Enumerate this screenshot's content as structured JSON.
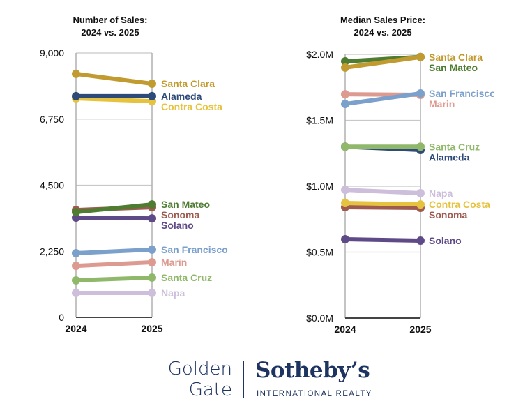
{
  "chart_data": [
    {
      "type": "line",
      "title": [
        "Number of Sales:",
        "2024 vs. 2025"
      ],
      "categories": [
        "2024",
        "2025"
      ],
      "ylim": [
        0,
        9000
      ],
      "yticks": [
        0,
        2250,
        4500,
        6750,
        9000
      ],
      "ytick_labels": [
        "0",
        "2,250",
        "4,500",
        "6,750",
        "9,000"
      ],
      "grid": true,
      "series": [
        {
          "name": "Santa Clara",
          "values": [
            8290,
            7955
          ],
          "color": "#c19a30"
        },
        {
          "name": "Alameda",
          "values": [
            7530,
            7530
          ],
          "color": "#2e4a78"
        },
        {
          "name": "Contra Costa",
          "values": [
            7455,
            7360
          ],
          "color": "#e6c33e"
        },
        {
          "name": "San Mateo",
          "values": [
            3585,
            3845
          ],
          "color": "#4e7d32"
        },
        {
          "name": "Sonoma",
          "values": [
            3655,
            3750
          ],
          "color": "#9e5a4e"
        },
        {
          "name": "Solano",
          "values": [
            3395,
            3370
          ],
          "color": "#5e4a87"
        },
        {
          "name": "San Francisco",
          "values": [
            2185,
            2305
          ],
          "color": "#7ba0cc"
        },
        {
          "name": "Marin",
          "values": [
            1755,
            1875
          ],
          "color": "#dd9a90"
        },
        {
          "name": "Santa Cruz",
          "values": [
            1260,
            1355
          ],
          "color": "#90b86a"
        },
        {
          "name": "Napa",
          "values": [
            830,
            830
          ],
          "color": "#cdbfdb"
        }
      ]
    },
    {
      "type": "line",
      "title": [
        "Median Sales Price:",
        "2024 vs. 2025"
      ],
      "categories": [
        "2024",
        "2025"
      ],
      "ylim": [
        0,
        2000000
      ],
      "yticks": [
        0,
        500000,
        1000000,
        1500000,
        2000000
      ],
      "ytick_labels": [
        "$0.0M",
        "$0.5M",
        "$1.0M",
        "$1.5M",
        "$2.0M"
      ],
      "grid": true,
      "series": [
        {
          "name": "Santa Clara",
          "values": [
            1900000,
            1980000
          ],
          "color": "#c19a30"
        },
        {
          "name": "San Mateo",
          "values": [
            1947000,
            1980000
          ],
          "color": "#4e7d32"
        },
        {
          "name": "San Francisco",
          "values": [
            1624000,
            1704000
          ],
          "color": "#7ba0cc"
        },
        {
          "name": "Marin",
          "values": [
            1698000,
            1693000
          ],
          "color": "#dd9a90"
        },
        {
          "name": "Santa Cruz",
          "values": [
            1300000,
            1300000
          ],
          "color": "#90b86a"
        },
        {
          "name": "Alameda",
          "values": [
            1300000,
            1275000
          ],
          "color": "#2e4a78"
        },
        {
          "name": "Napa",
          "values": [
            973000,
            947000
          ],
          "color": "#cdbfdb"
        },
        {
          "name": "Contra Costa",
          "values": [
            873000,
            862000
          ],
          "color": "#e6c33e"
        },
        {
          "name": "Sonoma",
          "values": [
            841000,
            836000
          ],
          "color": "#9e5a4e"
        },
        {
          "name": "Solano",
          "values": [
            598000,
            587000
          ],
          "color": "#5e4a87"
        }
      ]
    }
  ],
  "logo": {
    "line1": "Golden",
    "line2": "Gate",
    "brand": "Sotheby’s",
    "sub": "INTERNATIONAL REALTY",
    "color": "#1d3461"
  }
}
